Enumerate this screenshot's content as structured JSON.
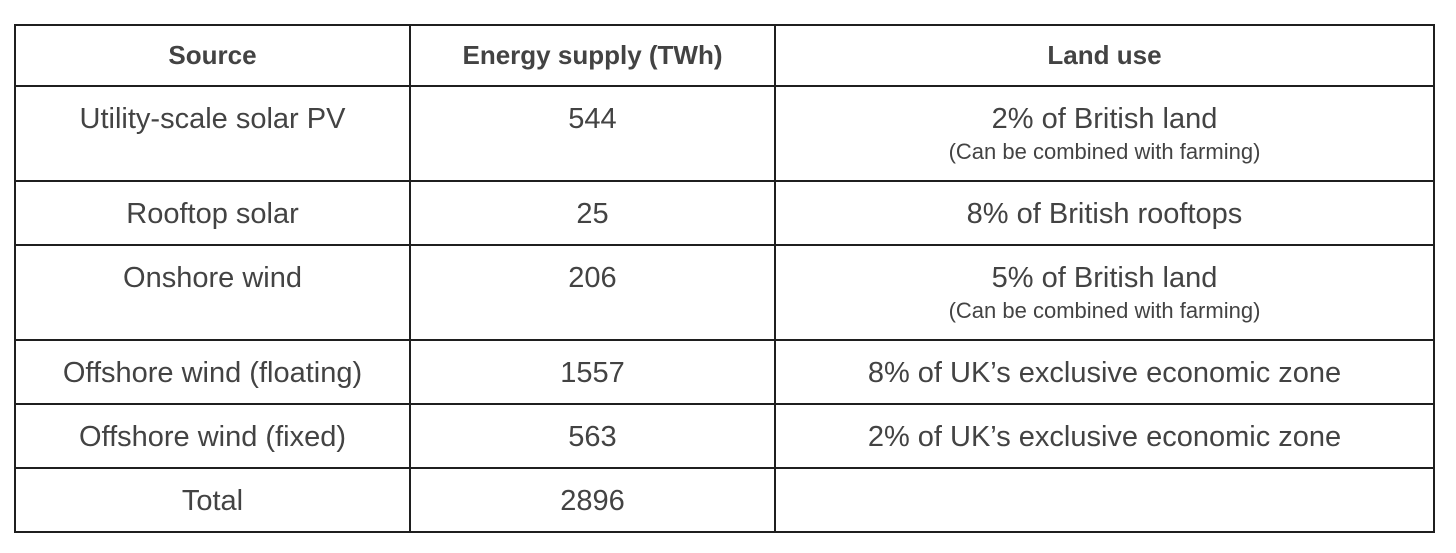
{
  "table": {
    "headers": [
      "Source",
      "Energy supply (TWh)",
      "Land use"
    ],
    "rows": [
      {
        "source": "Utility-scale solar PV",
        "energy": "544",
        "land_use": "2% of British land",
        "note": "(Can be combined with farming)"
      },
      {
        "source": "Rooftop solar",
        "energy": "25",
        "land_use": "8% of British rooftops",
        "note": ""
      },
      {
        "source": "Onshore wind",
        "energy": "206",
        "land_use": "5% of British land",
        "note": "(Can be combined with farming)"
      },
      {
        "source": "Offshore wind (floating)",
        "energy": "1557",
        "land_use": "8% of UK’s exclusive economic zone",
        "note": ""
      },
      {
        "source": "Offshore wind (fixed)",
        "energy": "563",
        "land_use": "2% of UK’s exclusive economic zone",
        "note": ""
      },
      {
        "source": "Total",
        "energy": "2896",
        "land_use": "",
        "note": ""
      }
    ]
  }
}
